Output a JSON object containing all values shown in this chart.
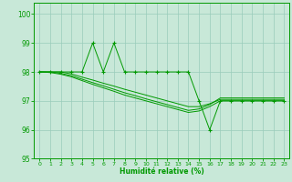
{
  "xlabel": "Humidité relative (%)",
  "background_color": "#c8e8d8",
  "grid_color": "#99ccbb",
  "line_color": "#009900",
  "xlim": [
    -0.5,
    23.5
  ],
  "ylim": [
    95,
    100.4
  ],
  "yticks": [
    95,
    96,
    97,
    98,
    99,
    100
  ],
  "xticks": [
    0,
    1,
    2,
    3,
    4,
    5,
    6,
    7,
    8,
    9,
    10,
    11,
    12,
    13,
    14,
    15,
    16,
    17,
    18,
    19,
    20,
    21,
    22,
    23
  ],
  "series_jagged": [
    98,
    98,
    98,
    98,
    98,
    99,
    98,
    99,
    98,
    98,
    98,
    98,
    98,
    98,
    98,
    97,
    96,
    97,
    97,
    97,
    97,
    97,
    97,
    97
  ],
  "series_smooth1": [
    98,
    98,
    98,
    97.93,
    97.82,
    97.72,
    97.61,
    97.51,
    97.4,
    97.3,
    97.2,
    97.1,
    97.0,
    96.9,
    96.8,
    96.8,
    96.9,
    97.05,
    97.05,
    97.05,
    97.05,
    97.05,
    97.05,
    97.05
  ],
  "series_smooth2": [
    98,
    98,
    97.95,
    97.87,
    97.75,
    97.63,
    97.52,
    97.4,
    97.28,
    97.18,
    97.07,
    96.97,
    96.87,
    96.77,
    96.67,
    96.72,
    96.87,
    97.1,
    97.1,
    97.1,
    97.1,
    97.1,
    97.1,
    97.1
  ],
  "series_smooth3": [
    98,
    97.98,
    97.92,
    97.83,
    97.7,
    97.57,
    97.45,
    97.33,
    97.2,
    97.1,
    97.0,
    96.9,
    96.8,
    96.7,
    96.6,
    96.65,
    96.8,
    97.0,
    97.0,
    97.0,
    97.0,
    97.0,
    97.0,
    97.0
  ]
}
